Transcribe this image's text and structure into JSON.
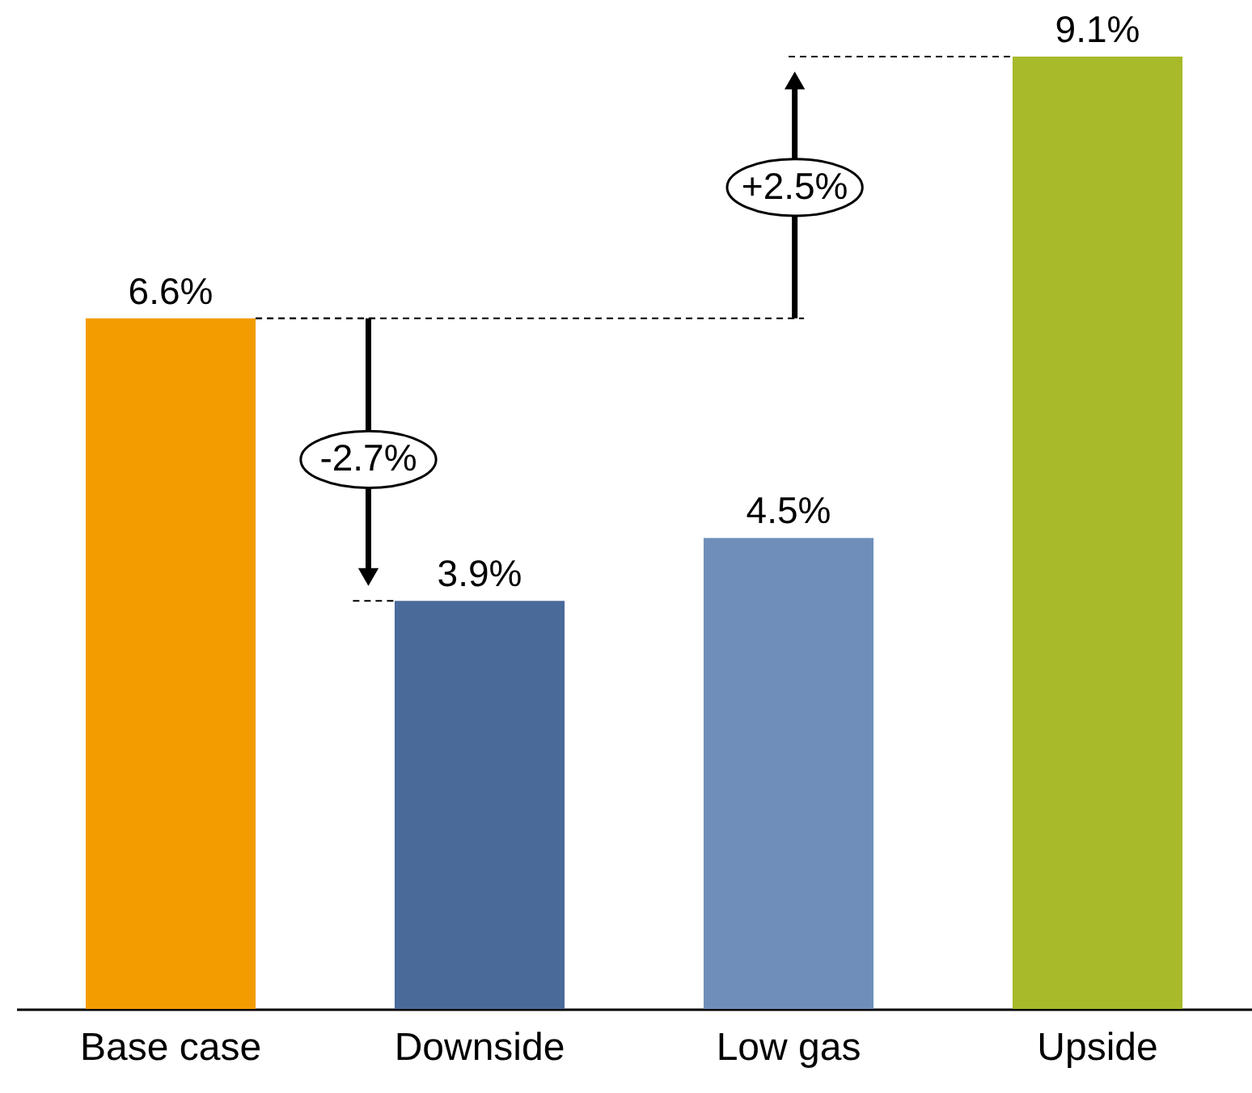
{
  "chart_data": {
    "type": "bar",
    "categories": [
      "Base case",
      "Downside",
      "Low gas",
      "Upside"
    ],
    "values": [
      6.6,
      3.9,
      4.5,
      9.1
    ],
    "colors": [
      "#f39c00",
      "#4a6a9a",
      "#6f8fba",
      "#a8b92a"
    ],
    "value_labels": [
      "6.6%",
      "3.9%",
      "4.5%",
      "9.1%"
    ],
    "annotations": [
      "-2.7%",
      "+2.5%"
    ],
    "tick_labels": "x"
  }
}
